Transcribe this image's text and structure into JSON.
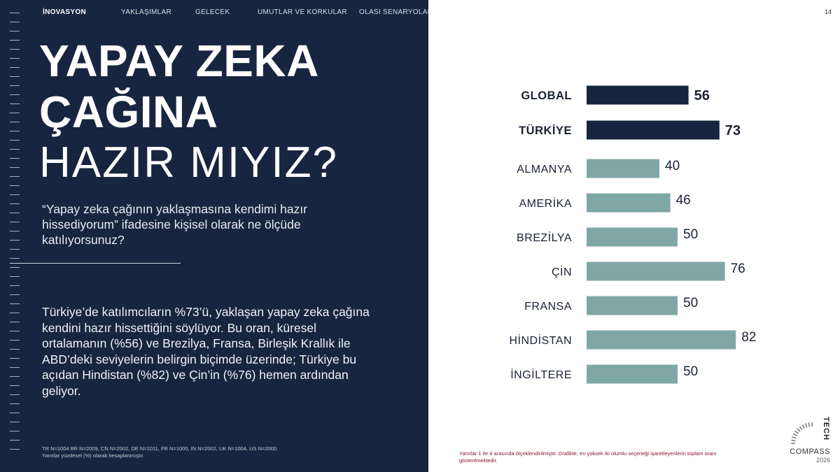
{
  "nav": {
    "items": [
      "İNOVASYON",
      "YAKLAŞIMLAR",
      "GELECEK",
      "UMUTLAR VE KORKULAR",
      "OLASI SENARYOLAR"
    ],
    "active_index": 0
  },
  "page_number": "14",
  "title": {
    "line1": "YAPAY ZEKA",
    "line2": "ÇAĞINA",
    "line3": "HAZIR MIYIZ?"
  },
  "question": "“Yapay zeka çağının yaklaşmasına kendimi hazır hissediyorum” ifadesine kişisel olarak ne ölçüde katılıyorsunuz?",
  "body_text": "Türkiye’de katılımcıların %73’ü, yaklaşan yapay zeka çağına kendini hazır hissettiğini söylüyor. Bu oran, küresel ortalamanın (%56) ve Brezilya, Fransa, Birleşik Krallık ile ABD’deki seviyelerin belirgin biçimde üzerinde; Türkiye bu açıdan Hindistan (%82) ve Çin’in (%76) hemen ardından geliyor.",
  "footnote": {
    "line1": "TR N=1004 BR N=2009, CN N=2002, DE N=1011, FR N=1000, IN N=2002, UK N=1004, US N=2000.",
    "line2": "Yanıtlar yüzdesel (%) olarak hesaplanmıştır."
  },
  "chart_note": "Yanıtlar 1 ile 4 arasında ölçeklendirilmiştir. Grafikte, en yüksek iki olumlu seçeneği işaretleyenlerin toplam oranı gösterilmektedir.",
  "logo": {
    "word1": "TECH",
    "word2": "COMPASS",
    "year": "2026"
  },
  "colors": {
    "panel": "#172540",
    "highlight_bar": "#172540",
    "bar": "#7fa7a6",
    "note": "#8a1530"
  },
  "chart_data": {
    "type": "bar",
    "orientation": "horizontal",
    "categories": [
      "GLOBAL",
      "TÜRKİYE",
      "ALMANYA",
      "AMERİKA",
      "BREZİLYA",
      "ÇİN",
      "FRANSA",
      "HİNDİSTAN",
      "İNGİLTERE"
    ],
    "values": [
      56,
      73,
      40,
      46,
      50,
      76,
      50,
      82,
      50
    ],
    "highlighted": [
      "GLOBAL",
      "TÜRKİYE"
    ],
    "unit": "%",
    "data_labels": true
  }
}
